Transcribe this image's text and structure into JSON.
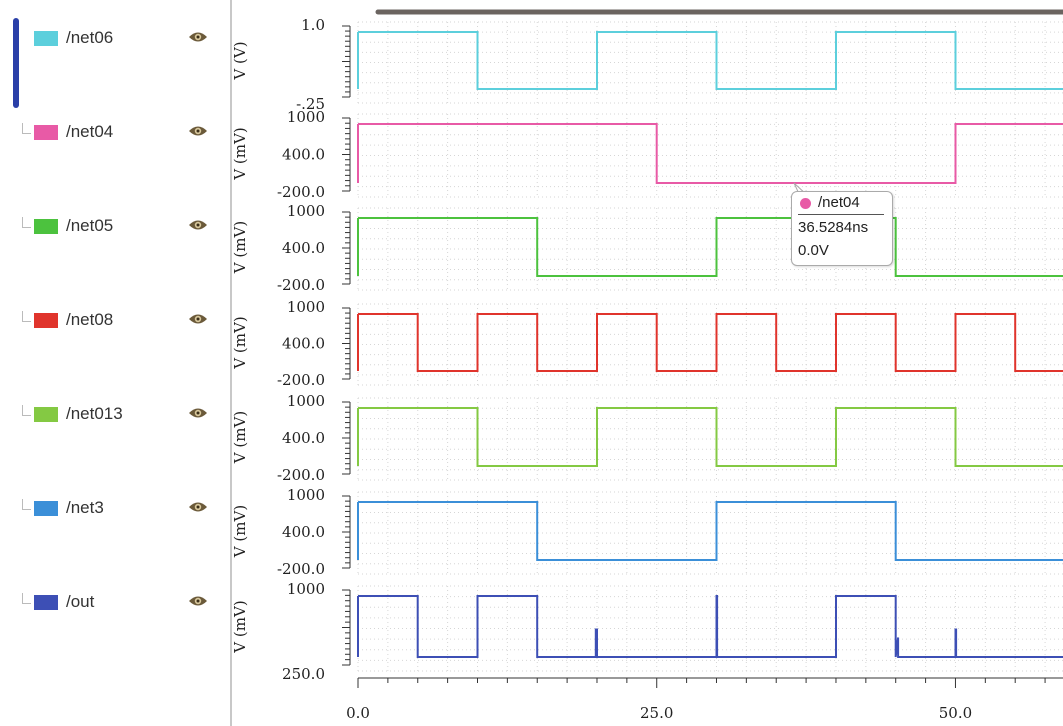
{
  "signals": [
    {
      "name": "/net06",
      "color": "#5ccfdc"
    },
    {
      "name": "/net04",
      "color": "#e85aa6"
    },
    {
      "name": "/net05",
      "color": "#4cc23e"
    },
    {
      "name": "/net08",
      "color": "#e0342c"
    },
    {
      "name": "/net013",
      "color": "#84c943"
    },
    {
      "name": "/net3",
      "color": "#3b8fd8"
    },
    {
      "name": "/out",
      "color": "#3d4fb5"
    }
  ],
  "tooltip": {
    "signal": "/net04",
    "time": "36.5284ns",
    "value": "0.0V",
    "color": "#e85aa6"
  },
  "chart_data": {
    "type": "line",
    "xticks": [
      "0.0",
      "25.0",
      "50.0"
    ],
    "xlim": [
      0,
      59
    ],
    "grid": true,
    "series": [
      {
        "name": "/net06",
        "color": "#5ccfdc",
        "ylabel": "V (V)",
        "ytick_labels": [
          "1.0",
          "-.25"
        ],
        "ylim": [
          -0.25,
          1.0
        ],
        "x": [
          0,
          10,
          10,
          20,
          20,
          30,
          30,
          40,
          40,
          50,
          50,
          59
        ],
        "y": [
          1.0,
          1.0,
          0,
          0,
          1.0,
          1.0,
          0,
          0,
          1.0,
          1.0,
          0,
          0
        ]
      },
      {
        "name": "/net04",
        "color": "#e85aa6",
        "ylabel": "V (mV)",
        "ytick_labels": [
          "1000",
          "400.0",
          "-200.0"
        ],
        "ylim": [
          -200,
          1000
        ],
        "x": [
          0,
          25,
          25,
          50,
          50,
          59
        ],
        "y": [
          1000,
          1000,
          0,
          0,
          1000,
          1000
        ]
      },
      {
        "name": "/net05",
        "color": "#4cc23e",
        "ylabel": "V (mV)",
        "ytick_labels": [
          "1000",
          "400.0",
          "-200.0"
        ],
        "ylim": [
          -200,
          1000
        ],
        "x": [
          0,
          15,
          15,
          30,
          30,
          45,
          45,
          59
        ],
        "y": [
          1000,
          1000,
          0,
          0,
          1000,
          1000,
          0,
          0
        ]
      },
      {
        "name": "/net08",
        "color": "#e0342c",
        "ylabel": "V (mV)",
        "ytick_labels": [
          "1000",
          "400.0",
          "-200.0"
        ],
        "ylim": [
          -200,
          1000
        ],
        "x": [
          0,
          5,
          5,
          10,
          10,
          15,
          15,
          20,
          20,
          25,
          25,
          30,
          30,
          35,
          35,
          40,
          40,
          45,
          45,
          50,
          50,
          55,
          55,
          59
        ],
        "y": [
          1000,
          1000,
          0,
          0,
          1000,
          1000,
          0,
          0,
          1000,
          1000,
          0,
          0,
          1000,
          1000,
          0,
          0,
          1000,
          1000,
          0,
          0,
          1000,
          1000,
          0,
          0
        ]
      },
      {
        "name": "/net013",
        "color": "#84c943",
        "ylabel": "V (mV)",
        "ytick_labels": [
          "1000",
          "400.0",
          "-200.0"
        ],
        "ylim": [
          -200,
          1000
        ],
        "x": [
          0,
          10,
          10,
          20,
          20,
          30,
          30,
          40,
          40,
          50,
          50,
          59
        ],
        "y": [
          1000,
          1000,
          0,
          0,
          1000,
          1000,
          0,
          0,
          1000,
          1000,
          0,
          0
        ]
      },
      {
        "name": "/net3",
        "color": "#3b8fd8",
        "ylabel": "V (mV)",
        "ytick_labels": [
          "1000",
          "400.0",
          "-200.0"
        ],
        "ylim": [
          -200,
          1000
        ],
        "x": [
          0,
          15,
          15,
          30,
          30,
          45,
          45,
          59
        ],
        "y": [
          1000,
          1000,
          0,
          0,
          1000,
          1000,
          0,
          0
        ]
      },
      {
        "name": "/out",
        "color": "#3d4fb5",
        "ylabel": "V (mV)",
        "ytick_labels": [
          "1000",
          "250.0"
        ],
        "ylim": [
          -50,
          1000
        ],
        "x": [
          0,
          5,
          5,
          10,
          10,
          15,
          15,
          19.9,
          19.9,
          20,
          20,
          30,
          30,
          30.05,
          30.05,
          40,
          40,
          45,
          45,
          45.2,
          45.2,
          50,
          50,
          50.05,
          50.05,
          59
        ],
        "y": [
          1000,
          1000,
          0,
          0,
          1000,
          1000,
          0,
          0,
          450,
          450,
          0,
          0,
          1000,
          1000,
          0,
          0,
          1000,
          1000,
          0,
          320,
          0,
          0,
          450,
          450,
          0,
          0
        ]
      }
    ]
  }
}
